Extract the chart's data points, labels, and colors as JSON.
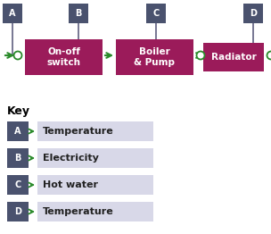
{
  "bg_color": "#ffffff",
  "block_color": "#9b1b5a",
  "label_bg_color": "#4a526e",
  "arrow_color": "#2a8a2a",
  "key_box_color": "#d8d8e8",
  "figw": 3.04,
  "figh": 2.62,
  "dpi": 100,
  "key_title": "Key",
  "key_items": [
    {
      "label": "A",
      "text": "Temperature"
    },
    {
      "label": "B",
      "text": "Electricity"
    },
    {
      "label": "C",
      "text": "Hot water"
    },
    {
      "label": "D",
      "text": "Temperature"
    }
  ]
}
